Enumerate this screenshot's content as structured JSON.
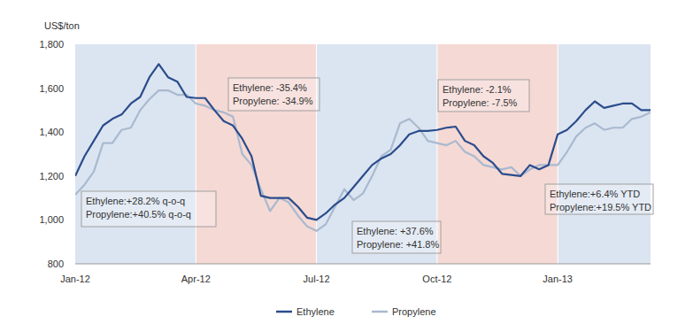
{
  "chart_data": {
    "type": "line",
    "y_label": "US$/ton",
    "categories": [
      "Jan-12",
      null,
      null,
      null,
      null,
      null,
      null,
      null,
      null,
      null,
      null,
      null,
      null,
      "Apr-12",
      null,
      null,
      null,
      null,
      null,
      null,
      null,
      null,
      null,
      null,
      null,
      null,
      "Jul-12",
      null,
      null,
      null,
      null,
      null,
      null,
      null,
      null,
      null,
      null,
      null,
      null,
      "Oct-12",
      null,
      null,
      null,
      null,
      null,
      null,
      null,
      null,
      null,
      null,
      null,
      null,
      "Jan-13",
      null,
      null,
      null,
      null,
      null,
      null,
      null,
      null,
      null,
      null
    ],
    "series": [
      {
        "name": "Ethylene",
        "color": "#2b4c8c",
        "values": [
          1200,
          1290,
          1360,
          1430,
          1460,
          1480,
          1530,
          1560,
          1650,
          1710,
          1650,
          1630,
          1560,
          1555,
          1555,
          1500,
          1450,
          1430,
          1370,
          1290,
          1110,
          1100,
          1100,
          1100,
          1060,
          1010,
          1000,
          1030,
          1070,
          1100,
          1150,
          1200,
          1250,
          1280,
          1300,
          1340,
          1390,
          1405,
          1405,
          1410,
          1420,
          1425,
          1360,
          1340,
          1290,
          1260,
          1210,
          1205,
          1200,
          1250,
          1230,
          1250,
          1390,
          1410,
          1450,
          1500,
          1540,
          1510,
          1520,
          1530,
          1530,
          1500,
          1500
        ]
      },
      {
        "name": "Propylene",
        "color": "#a9b9cf",
        "values": [
          1115,
          1160,
          1220,
          1350,
          1350,
          1410,
          1420,
          1500,
          1550,
          1590,
          1590,
          1570,
          1570,
          1530,
          1520,
          1500,
          1490,
          1470,
          1300,
          1250,
          1140,
          1040,
          1100,
          1080,
          1020,
          970,
          950,
          980,
          1060,
          1140,
          1090,
          1120,
          1200,
          1290,
          1320,
          1440,
          1460,
          1420,
          1360,
          1350,
          1340,
          1360,
          1310,
          1290,
          1250,
          1240,
          1230,
          1240,
          1200,
          1230,
          1250,
          1250,
          1250,
          1310,
          1380,
          1420,
          1440,
          1410,
          1420,
          1420,
          1460,
          1470,
          1490
        ]
      }
    ],
    "ylim": [
      800,
      1800
    ],
    "yticks": [
      800,
      {
        "value": 1000,
        "label": "1,000"
      },
      {
        "value": 1200,
        "label": "1,200"
      },
      {
        "value": 1400,
        "label": "1,400"
      },
      {
        "value": 1600,
        "label": "1,600"
      },
      {
        "value": 1800,
        "label": "1,800"
      }
    ],
    "grid": false,
    "legend": "bottom",
    "annotations": [
      [
        "Ethylene:+28.2% q-o-q",
        "Propylene:+40.5% q-o-q"
      ],
      [
        "Ethylene: -35.4%",
        "Propylene: -34.9%"
      ],
      [
        "Ethylene: +37.6%",
        "Propylene: +41.8%"
      ],
      [
        "Ethylene: -2.1%",
        "Propylene: -7.5%"
      ],
      [
        "Ethylene:+6.4% YTD",
        "Propylene:+19.5% YTD"
      ]
    ]
  }
}
